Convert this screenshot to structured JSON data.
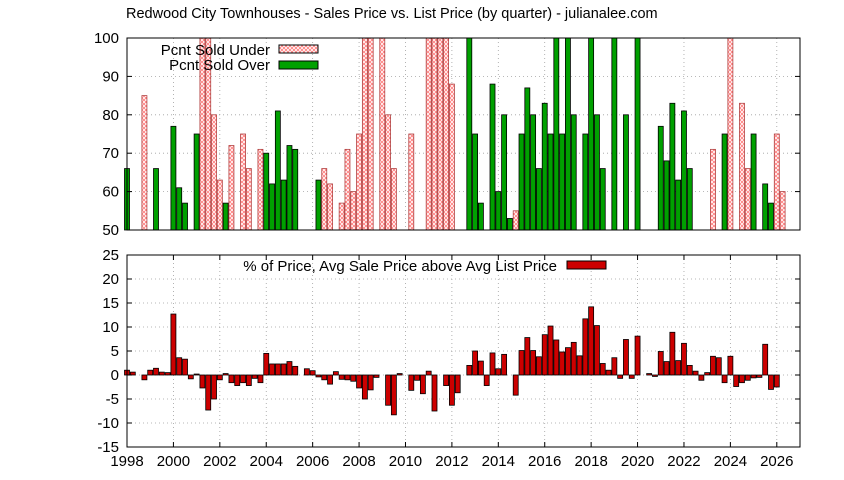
{
  "chart_data": [
    {
      "type": "bar",
      "title": "Redwood City Townhouses - Sales Price vs. List Price (by quarter) - julianalee.com",
      "ylim": [
        50,
        100
      ],
      "yticks": [
        50,
        60,
        70,
        80,
        90,
        100
      ],
      "xlim": [
        1998,
        2027
      ],
      "grid": true,
      "legend_position": "top-left",
      "series": [
        {
          "name": "Pcnt Sold Under",
          "color": "#ff9999",
          "pattern": "crosshatch",
          "points": [
            [
              1998.75,
              85
            ],
            [
              2001.25,
              100
            ],
            [
              2001.5,
              100
            ],
            [
              2001.75,
              80
            ],
            [
              2002.0,
              63
            ],
            [
              2002.5,
              72
            ],
            [
              2003.0,
              75
            ],
            [
              2003.25,
              66
            ],
            [
              2003.75,
              71
            ],
            [
              2006.5,
              66
            ],
            [
              2006.75,
              62
            ],
            [
              2007.25,
              57
            ],
            [
              2007.5,
              71
            ],
            [
              2007.75,
              60
            ],
            [
              2008.0,
              75
            ],
            [
              2008.25,
              100
            ],
            [
              2008.5,
              100
            ],
            [
              2009.0,
              100
            ],
            [
              2009.25,
              80
            ],
            [
              2009.5,
              66
            ],
            [
              2010.25,
              75
            ],
            [
              2011.0,
              100
            ],
            [
              2011.25,
              100
            ],
            [
              2011.5,
              100
            ],
            [
              2011.75,
              100
            ],
            [
              2012.0,
              88
            ],
            [
              2014.75,
              55
            ],
            [
              2023.25,
              71
            ],
            [
              2024.0,
              100
            ],
            [
              2024.5,
              83
            ],
            [
              2024.75,
              66
            ],
            [
              2026.0,
              75
            ],
            [
              2026.25,
              60
            ]
          ]
        },
        {
          "name": "Pcnt Sold Over",
          "color": "#00a000",
          "points": [
            [
              1998.0,
              66
            ],
            [
              1999.25,
              66
            ],
            [
              2000.0,
              77
            ],
            [
              2000.25,
              61
            ],
            [
              2000.5,
              57
            ],
            [
              2001.0,
              75
            ],
            [
              2002.25,
              57
            ],
            [
              2004.0,
              70
            ],
            [
              2004.25,
              62
            ],
            [
              2004.5,
              81
            ],
            [
              2004.75,
              63
            ],
            [
              2005.0,
              72
            ],
            [
              2005.25,
              71
            ],
            [
              2006.25,
              63
            ],
            [
              2012.75,
              100
            ],
            [
              2013.0,
              75
            ],
            [
              2013.25,
              57
            ],
            [
              2013.75,
              88
            ],
            [
              2014.0,
              60
            ],
            [
              2014.25,
              80
            ],
            [
              2014.5,
              53
            ],
            [
              2015.0,
              75
            ],
            [
              2015.25,
              87
            ],
            [
              2015.5,
              80
            ],
            [
              2015.75,
              66
            ],
            [
              2016.0,
              83
            ],
            [
              2016.25,
              75
            ],
            [
              2016.5,
              100
            ],
            [
              2016.75,
              75
            ],
            [
              2017.0,
              100
            ],
            [
              2017.25,
              80
            ],
            [
              2017.75,
              75
            ],
            [
              2018.0,
              100
            ],
            [
              2018.25,
              80
            ],
            [
              2018.5,
              66
            ],
            [
              2019.0,
              100
            ],
            [
              2019.5,
              80
            ],
            [
              2020.0,
              100
            ],
            [
              2021.0,
              77
            ],
            [
              2021.25,
              68
            ],
            [
              2021.5,
              83
            ],
            [
              2021.75,
              63
            ],
            [
              2022.0,
              81
            ],
            [
              2022.25,
              66
            ],
            [
              2023.75,
              75
            ],
            [
              2025.0,
              75
            ],
            [
              2025.5,
              62
            ],
            [
              2025.75,
              57
            ]
          ]
        }
      ]
    },
    {
      "type": "bar",
      "title": "",
      "ylim": [
        -15,
        25
      ],
      "yticks": [
        -15,
        -10,
        -5,
        0,
        5,
        10,
        15,
        20,
        25
      ],
      "xlim": [
        1998,
        2027
      ],
      "xticks": [
        1998,
        2000,
        2002,
        2004,
        2006,
        2008,
        2010,
        2012,
        2014,
        2016,
        2018,
        2020,
        2022,
        2024,
        2026
      ],
      "grid": true,
      "legend_position": "top-center",
      "series": [
        {
          "name": "% of Price, Avg Sale Price above Avg List Price",
          "color": "#cc0000",
          "points": [
            [
              1998.0,
              1.0
            ],
            [
              1998.25,
              0.6
            ],
            [
              1998.75,
              -1.0
            ],
            [
              1999.0,
              1.0
            ],
            [
              1999.25,
              1.4
            ],
            [
              1999.5,
              0.6
            ],
            [
              1999.75,
              0.5
            ],
            [
              2000.0,
              12.7
            ],
            [
              2000.25,
              3.6
            ],
            [
              2000.5,
              3.3
            ],
            [
              2000.75,
              -0.8
            ],
            [
              2001.0,
              0.2
            ],
            [
              2001.25,
              -2.7
            ],
            [
              2001.5,
              -7.3
            ],
            [
              2001.75,
              -5.0
            ],
            [
              2002.0,
              -1.0
            ],
            [
              2002.25,
              0.3
            ],
            [
              2002.5,
              -1.6
            ],
            [
              2002.75,
              -2.2
            ],
            [
              2003.0,
              -1.6
            ],
            [
              2003.25,
              -2.2
            ],
            [
              2003.5,
              -0.7
            ],
            [
              2003.75,
              -1.6
            ],
            [
              2004.0,
              4.5
            ],
            [
              2004.25,
              2.3
            ],
            [
              2004.5,
              2.3
            ],
            [
              2004.75,
              2.3
            ],
            [
              2005.0,
              2.8
            ],
            [
              2005.25,
              1.8
            ],
            [
              2005.75,
              1.3
            ],
            [
              2006.0,
              0.9
            ],
            [
              2006.25,
              -0.4
            ],
            [
              2006.5,
              -1.0
            ],
            [
              2006.75,
              -1.9
            ],
            [
              2007.0,
              0.7
            ],
            [
              2007.25,
              -0.9
            ],
            [
              2007.5,
              -1.0
            ],
            [
              2007.75,
              -1.3
            ],
            [
              2008.0,
              -2.7
            ],
            [
              2008.25,
              -5.0
            ],
            [
              2008.5,
              -3.1
            ],
            [
              2008.75,
              -0.5
            ],
            [
              2009.25,
              -6.3
            ],
            [
              2009.5,
              -8.3
            ],
            [
              2009.75,
              0.3
            ],
            [
              2010.25,
              -3.2
            ],
            [
              2010.5,
              -1.1
            ],
            [
              2010.75,
              -3.9
            ],
            [
              2011.0,
              0.8
            ],
            [
              2011.25,
              -7.5
            ],
            [
              2011.75,
              -2.2
            ],
            [
              2012.0,
              -6.3
            ],
            [
              2012.25,
              -3.7
            ],
            [
              2012.75,
              2.0
            ],
            [
              2013.0,
              5.0
            ],
            [
              2013.25,
              2.9
            ],
            [
              2013.5,
              -2.2
            ],
            [
              2013.75,
              4.6
            ],
            [
              2014.0,
              1.3
            ],
            [
              2014.25,
              4.3
            ],
            [
              2014.75,
              -4.2
            ],
            [
              2015.0,
              5.1
            ],
            [
              2015.25,
              7.8
            ],
            [
              2015.5,
              5.1
            ],
            [
              2015.75,
              3.8
            ],
            [
              2016.0,
              8.4
            ],
            [
              2016.25,
              10.2
            ],
            [
              2016.5,
              7.3
            ],
            [
              2016.75,
              4.8
            ],
            [
              2017.0,
              5.7
            ],
            [
              2017.25,
              6.8
            ],
            [
              2017.5,
              4.0
            ],
            [
              2017.75,
              11.7
            ],
            [
              2018.0,
              14.2
            ],
            [
              2018.25,
              10.3
            ],
            [
              2018.5,
              2.4
            ],
            [
              2018.75,
              1.0
            ],
            [
              2019.0,
              3.6
            ],
            [
              2019.25,
              -0.7
            ],
            [
              2019.5,
              7.4
            ],
            [
              2019.75,
              -0.7
            ],
            [
              2020.0,
              8.1
            ],
            [
              2020.5,
              0.3
            ],
            [
              2020.75,
              -0.3
            ],
            [
              2021.0,
              4.9
            ],
            [
              2021.25,
              2.8
            ],
            [
              2021.5,
              8.9
            ],
            [
              2021.75,
              3.0
            ],
            [
              2022.0,
              6.6
            ],
            [
              2022.25,
              2.0
            ],
            [
              2022.5,
              0.8
            ],
            [
              2022.75,
              -1.1
            ],
            [
              2023.0,
              0.5
            ],
            [
              2023.25,
              3.9
            ],
            [
              2023.5,
              3.6
            ],
            [
              2023.75,
              -1.6
            ],
            [
              2024.0,
              3.9
            ],
            [
              2024.25,
              -2.4
            ],
            [
              2024.5,
              -1.6
            ],
            [
              2024.75,
              -1.1
            ],
            [
              2025.0,
              -0.6
            ],
            [
              2025.25,
              -0.5
            ],
            [
              2025.5,
              6.4
            ],
            [
              2025.75,
              -3.0
            ],
            [
              2026.0,
              -2.5
            ]
          ]
        }
      ]
    }
  ]
}
